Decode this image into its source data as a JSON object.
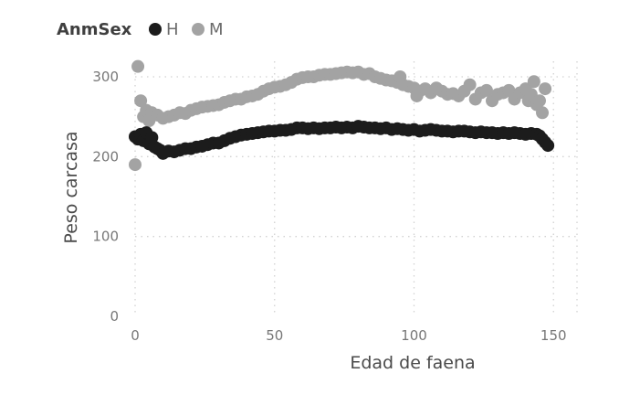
{
  "chart_data": {
    "type": "scatter",
    "title": "",
    "xlabel": "Edad de faena",
    "ylabel": "Peso carcasa",
    "xlim": [
      0,
      160
    ],
    "ylim": [
      0,
      320
    ],
    "xticks": [
      0,
      50,
      100,
      150
    ],
    "yticks": [
      0,
      100,
      200,
      300
    ],
    "xtick_labels": [
      "0",
      "50",
      "100",
      "150"
    ],
    "ytick_labels": [
      "0",
      "100",
      "200",
      "300"
    ],
    "grid": true,
    "legend": {
      "title": "AnmSex",
      "placement": "top-left"
    },
    "series": [
      {
        "name": "H",
        "color": "#1c1c1c",
        "points": [
          [
            0,
            225
          ],
          [
            1,
            222
          ],
          [
            2,
            228
          ],
          [
            3,
            220
          ],
          [
            4,
            230
          ],
          [
            5,
            216
          ],
          [
            6,
            224
          ],
          [
            7,
            212
          ],
          [
            8,
            210
          ],
          [
            9,
            208
          ],
          [
            10,
            204
          ],
          [
            12,
            207
          ],
          [
            14,
            206
          ],
          [
            16,
            208
          ],
          [
            18,
            210
          ],
          [
            20,
            210
          ],
          [
            22,
            212
          ],
          [
            24,
            213
          ],
          [
            26,
            215
          ],
          [
            28,
            217
          ],
          [
            30,
            217
          ],
          [
            32,
            220
          ],
          [
            34,
            223
          ],
          [
            36,
            225
          ],
          [
            38,
            227
          ],
          [
            40,
            228
          ],
          [
            42,
            229
          ],
          [
            44,
            230
          ],
          [
            46,
            231
          ],
          [
            48,
            232
          ],
          [
            50,
            232
          ],
          [
            52,
            233
          ],
          [
            54,
            233
          ],
          [
            56,
            234
          ],
          [
            58,
            236
          ],
          [
            60,
            236
          ],
          [
            62,
            235
          ],
          [
            64,
            236
          ],
          [
            66,
            235
          ],
          [
            68,
            236
          ],
          [
            70,
            236
          ],
          [
            72,
            237
          ],
          [
            74,
            236
          ],
          [
            76,
            237
          ],
          [
            78,
            236
          ],
          [
            80,
            238
          ],
          [
            82,
            237
          ],
          [
            84,
            236
          ],
          [
            86,
            236
          ],
          [
            88,
            235
          ],
          [
            90,
            236
          ],
          [
            92,
            234
          ],
          [
            94,
            235
          ],
          [
            96,
            234
          ],
          [
            98,
            233
          ],
          [
            100,
            234
          ],
          [
            102,
            232
          ],
          [
            104,
            233
          ],
          [
            106,
            234
          ],
          [
            108,
            233
          ],
          [
            110,
            232
          ],
          [
            112,
            232
          ],
          [
            114,
            231
          ],
          [
            116,
            232
          ],
          [
            118,
            232
          ],
          [
            120,
            231
          ],
          [
            122,
            230
          ],
          [
            124,
            231
          ],
          [
            126,
            230
          ],
          [
            128,
            230
          ],
          [
            130,
            229
          ],
          [
            132,
            230
          ],
          [
            134,
            229
          ],
          [
            136,
            230
          ],
          [
            138,
            229
          ],
          [
            140,
            228
          ],
          [
            142,
            229
          ],
          [
            144,
            228
          ],
          [
            145,
            226
          ],
          [
            146,
            222
          ],
          [
            147,
            218
          ],
          [
            148,
            214
          ]
        ]
      },
      {
        "name": "M",
        "color": "#a3a3a3",
        "points": [
          [
            0,
            190
          ],
          [
            1,
            313
          ],
          [
            2,
            270
          ],
          [
            3,
            250
          ],
          [
            4,
            258
          ],
          [
            5,
            245
          ],
          [
            6,
            255
          ],
          [
            8,
            252
          ],
          [
            10,
            248
          ],
          [
            12,
            250
          ],
          [
            14,
            252
          ],
          [
            16,
            255
          ],
          [
            18,
            254
          ],
          [
            20,
            258
          ],
          [
            22,
            260
          ],
          [
            24,
            262
          ],
          [
            26,
            263
          ],
          [
            28,
            264
          ],
          [
            30,
            265
          ],
          [
            32,
            268
          ],
          [
            34,
            270
          ],
          [
            36,
            272
          ],
          [
            38,
            272
          ],
          [
            40,
            275
          ],
          [
            42,
            276
          ],
          [
            44,
            278
          ],
          [
            46,
            282
          ],
          [
            48,
            285
          ],
          [
            50,
            287
          ],
          [
            52,
            288
          ],
          [
            54,
            290
          ],
          [
            56,
            293
          ],
          [
            58,
            297
          ],
          [
            60,
            299
          ],
          [
            62,
            300
          ],
          [
            64,
            300
          ],
          [
            66,
            302
          ],
          [
            68,
            303
          ],
          [
            70,
            303
          ],
          [
            72,
            304
          ],
          [
            74,
            305
          ],
          [
            76,
            306
          ],
          [
            78,
            305
          ],
          [
            80,
            306
          ],
          [
            82,
            303
          ],
          [
            84,
            304
          ],
          [
            86,
            300
          ],
          [
            88,
            298
          ],
          [
            90,
            296
          ],
          [
            92,
            295
          ],
          [
            94,
            293
          ],
          [
            95,
            300
          ],
          [
            96,
            290
          ],
          [
            98,
            288
          ],
          [
            100,
            286
          ],
          [
            101,
            276
          ],
          [
            102,
            282
          ],
          [
            104,
            285
          ],
          [
            106,
            280
          ],
          [
            108,
            286
          ],
          [
            110,
            282
          ],
          [
            112,
            278
          ],
          [
            114,
            279
          ],
          [
            116,
            276
          ],
          [
            118,
            282
          ],
          [
            120,
            290
          ],
          [
            122,
            272
          ],
          [
            124,
            280
          ],
          [
            126,
            283
          ],
          [
            128,
            270
          ],
          [
            130,
            278
          ],
          [
            132,
            280
          ],
          [
            134,
            283
          ],
          [
            136,
            272
          ],
          [
            138,
            280
          ],
          [
            140,
            285
          ],
          [
            141,
            270
          ],
          [
            142,
            278
          ],
          [
            143,
            294
          ],
          [
            144,
            265
          ],
          [
            145,
            270
          ],
          [
            146,
            255
          ],
          [
            147,
            285
          ]
        ]
      }
    ]
  }
}
